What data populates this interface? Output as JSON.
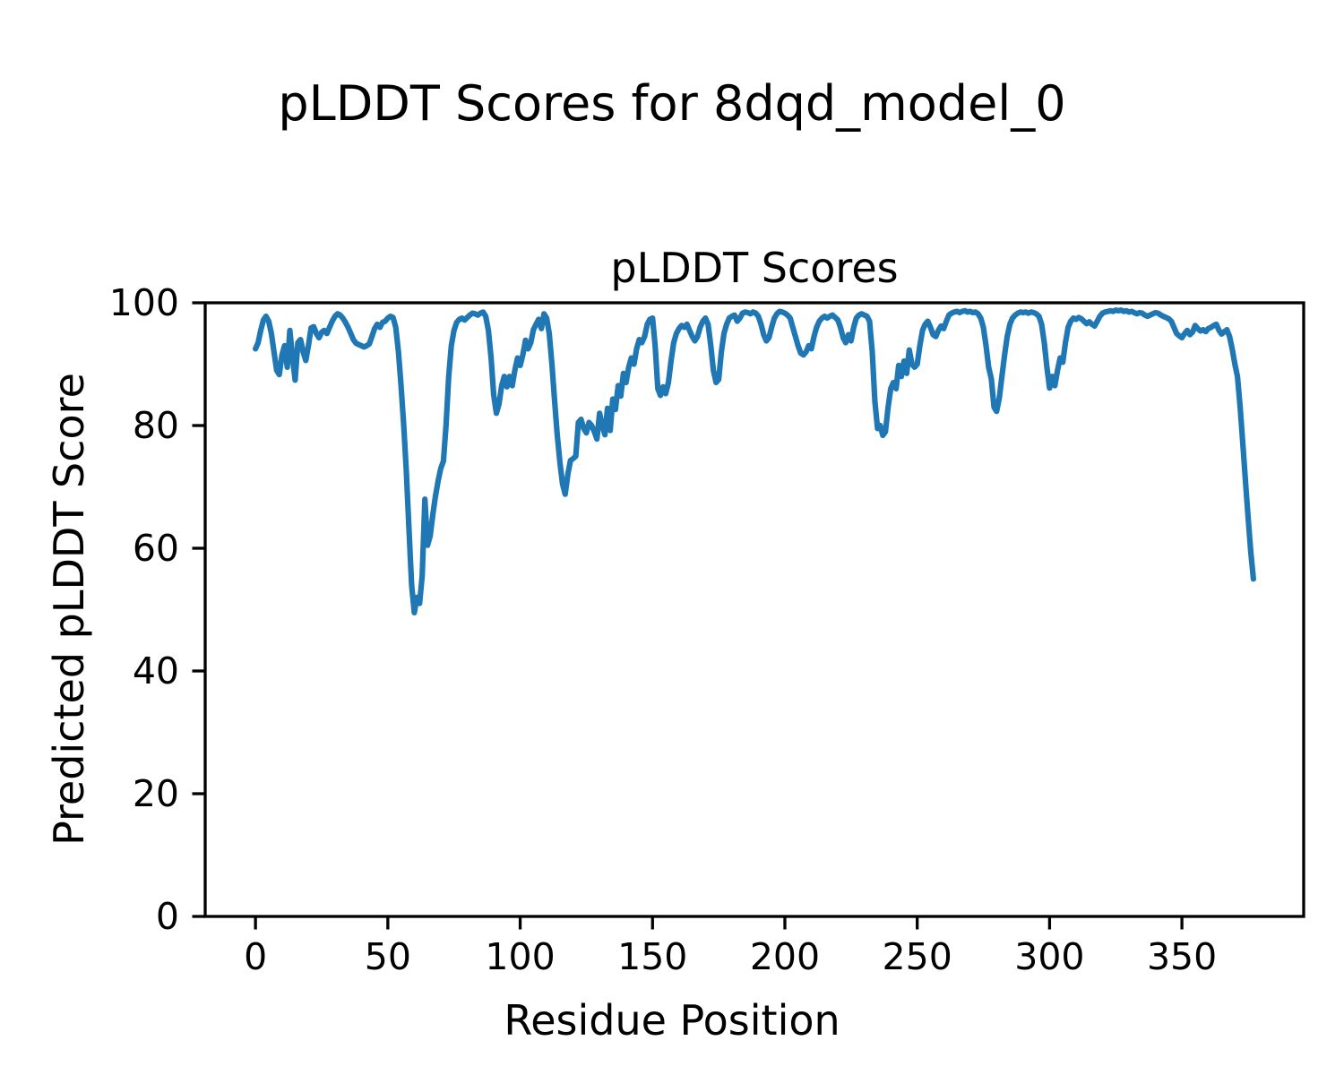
{
  "figure": {
    "suptitle": "pLDDT Scores for 8dqd_model_0",
    "axes_title": "pLDDT Scores",
    "xlabel": "Residue Position",
    "ylabel": "Predicted pLDDT Score"
  },
  "chart_data": {
    "type": "line",
    "title": "pLDDT Scores",
    "xlabel": "Residue Position",
    "ylabel": "Predicted pLDDT Score",
    "legend": "none",
    "grid": false,
    "line_color": "#1f77b4",
    "axis_color": "#000000",
    "xlim": [
      -19,
      396
    ],
    "ylim": [
      0,
      100
    ],
    "x_ticks": [
      0,
      50,
      100,
      150,
      200,
      250,
      300,
      350
    ],
    "y_ticks": [
      0,
      20,
      40,
      60,
      80,
      100
    ],
    "x_start": 0,
    "x_step": 1,
    "values": [
      92.5,
      93.5,
      95.5,
      97.2,
      97.8,
      97.0,
      95.0,
      92.0,
      89.0,
      88.3,
      91.5,
      93.0,
      89.5,
      95.5,
      91.0,
      87.4,
      93.5,
      94.0,
      92.0,
      90.6,
      93.0,
      95.9,
      96.1,
      95.0,
      94.3,
      95.2,
      95.5,
      95.0,
      96.0,
      97.0,
      97.8,
      98.2,
      98.0,
      97.5,
      96.8,
      96.0,
      95.0,
      94.0,
      93.4,
      93.2,
      93.0,
      92.8,
      93.0,
      93.3,
      94.5,
      95.8,
      96.5,
      96.0,
      96.8,
      97.0,
      97.5,
      97.8,
      97.6,
      96.0,
      92.0,
      86.5,
      80.0,
      72.5,
      63.0,
      54.0,
      49.5,
      52.0,
      51.0,
      55.5,
      68.0,
      60.5,
      62.0,
      65.5,
      68.5,
      71.0,
      73.0,
      74.2,
      80.0,
      88.0,
      93.0,
      95.5,
      96.8,
      97.3,
      97.5,
      97.2,
      97.6,
      98.0,
      98.3,
      98.2,
      98.0,
      98.3,
      98.5,
      97.8,
      95.5,
      91.0,
      85.0,
      82.0,
      83.5,
      86.5,
      88.0,
      86.3,
      88.0,
      86.5,
      89.0,
      91.0,
      89.8,
      91.5,
      93.9,
      92.5,
      93.5,
      95.6,
      96.5,
      97.3,
      95.8,
      98.2,
      97.5,
      95.0,
      90.0,
      84.0,
      78.5,
      74.0,
      70.5,
      68.8,
      72.0,
      74.3,
      74.6,
      75.0,
      80.5,
      81.0,
      79.5,
      78.8,
      80.5,
      80.0,
      79.0,
      77.8,
      82.0,
      80.0,
      78.5,
      82.8,
      79.2,
      84.3,
      82.6,
      86.5,
      84.8,
      88.5,
      87.0,
      89.5,
      91.0,
      90.0,
      92.5,
      94.0,
      93.5,
      94.5,
      96.5,
      97.3,
      97.5,
      93.0,
      86.0,
      84.9,
      86.3,
      85.2,
      87.0,
      90.5,
      93.5,
      95.0,
      95.8,
      96.3,
      96.0,
      96.5,
      95.5,
      94.5,
      93.8,
      94.5,
      96.0,
      97.0,
      97.5,
      96.5,
      93.0,
      89.0,
      87.0,
      87.5,
      92.0,
      95.0,
      96.5,
      97.5,
      97.8,
      98.0,
      97.0,
      97.5,
      98.3,
      98.5,
      98.4,
      98.2,
      98.5,
      98.3,
      97.8,
      96.5,
      94.8,
      93.8,
      94.3,
      96.0,
      97.5,
      98.2,
      98.6,
      98.5,
      98.3,
      98.0,
      97.5,
      96.0,
      94.5,
      93.0,
      91.8,
      91.5,
      92.0,
      93.0,
      92.5,
      94.5,
      96.0,
      97.0,
      97.5,
      97.8,
      97.5,
      97.8,
      98.0,
      97.6,
      97.2,
      96.0,
      94.3,
      93.5,
      94.8,
      93.8,
      96.0,
      97.5,
      98.0,
      98.2,
      98.0,
      97.8,
      97.0,
      92.0,
      84.0,
      79.5,
      80.0,
      78.4,
      79.0,
      83.0,
      86.0,
      87.0,
      86.0,
      89.8,
      88.0,
      90.5,
      88.5,
      92.3,
      90.0,
      89.5,
      90.0,
      93.0,
      95.5,
      96.5,
      97.0,
      96.0,
      94.8,
      94.5,
      95.5,
      96.2,
      95.8,
      97.0,
      98.0,
      98.3,
      98.5,
      98.6,
      98.4,
      98.6,
      98.7,
      98.5,
      98.6,
      98.4,
      98.5,
      98.2,
      97.5,
      96.0,
      93.0,
      89.5,
      87.6,
      83.0,
      82.3,
      84.5,
      88.0,
      91.5,
      94.5,
      96.5,
      97.5,
      98.0,
      98.3,
      98.5,
      98.4,
      98.5,
      98.3,
      98.5,
      98.4,
      98.2,
      97.8,
      96.5,
      93.5,
      89.5,
      86.1,
      88.0,
      86.5,
      89.0,
      91.0,
      90.3,
      93.5,
      96.0,
      97.0,
      97.5,
      97.3,
      97.6,
      97.4,
      97.0,
      96.6,
      96.9,
      96.5,
      96.2,
      97.0,
      97.8,
      98.3,
      98.5,
      98.6,
      98.7,
      98.6,
      98.8,
      98.7,
      98.8,
      98.6,
      98.7,
      98.5,
      98.6,
      98.4,
      98.2,
      98.4,
      98.3,
      98.0,
      97.8,
      98.0,
      98.2,
      98.4,
      98.3,
      98.0,
      97.8,
      97.6,
      97.4,
      97.0,
      96.0,
      95.0,
      94.6,
      94.3,
      95.0,
      95.5,
      94.8,
      95.2,
      96.3,
      95.8,
      95.4,
      95.6,
      95.3,
      95.8,
      96.0,
      96.3,
      96.5,
      95.5,
      94.9,
      95.3,
      95.6,
      94.5,
      92.5,
      90.0,
      88.0,
      83.0,
      77.0,
      71.0,
      65.0,
      59.5,
      55.0
    ]
  }
}
